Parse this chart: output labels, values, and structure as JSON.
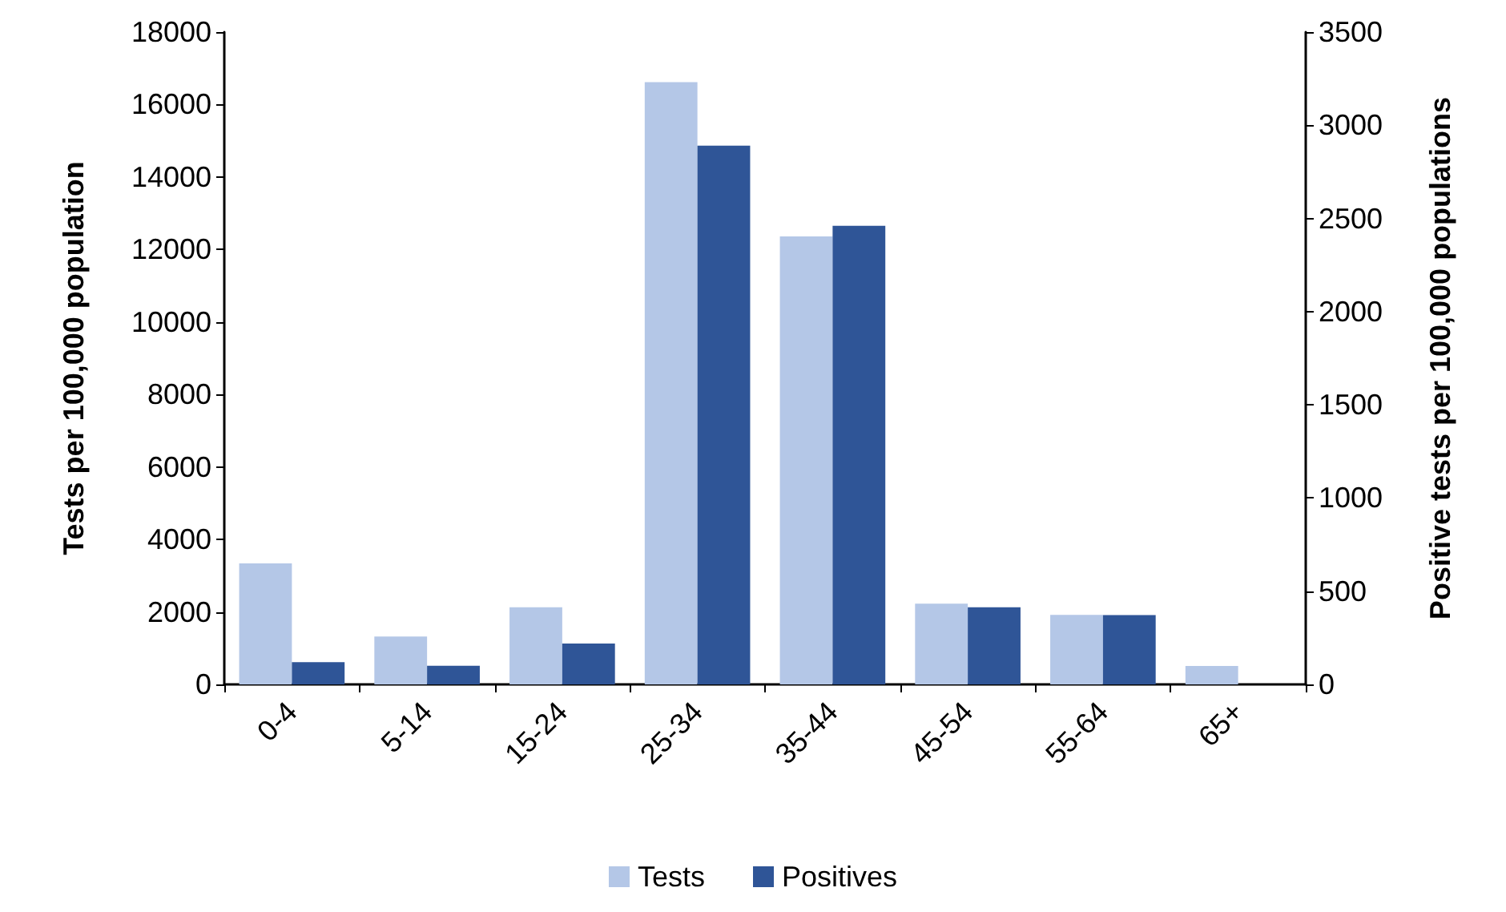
{
  "chart_data": {
    "type": "bar",
    "xlabel": null,
    "ylabel": "Tests per 100,000 population",
    "y2label": "Positive tests per 100,000 populations",
    "categories": [
      "0-4",
      "5-14",
      "15-24",
      "25-34",
      "35-44",
      "45-54",
      "55-64",
      "65+"
    ],
    "series": [
      {
        "name": "Tests",
        "color": "#b4c7e7",
        "values": [
          3340,
          1320,
          2130,
          16620,
          12360,
          2230,
          1920,
          510
        ]
      },
      {
        "name": "Positives",
        "color": "#2f5597",
        "axis": "y2",
        "values": [
          119,
          100,
          219,
          2890,
          2460,
          414,
          372,
          0
        ]
      }
    ],
    "ylim": [
      0,
      18000
    ],
    "yticks": [
      0,
      2000,
      4000,
      6000,
      8000,
      10000,
      12000,
      14000,
      16000,
      18000
    ],
    "y2lim": [
      0,
      3500
    ],
    "y2ticks": [
      0,
      500,
      1000,
      1500,
      2000,
      2500,
      3000,
      3500
    ],
    "grid": false,
    "legend": "bottom"
  }
}
